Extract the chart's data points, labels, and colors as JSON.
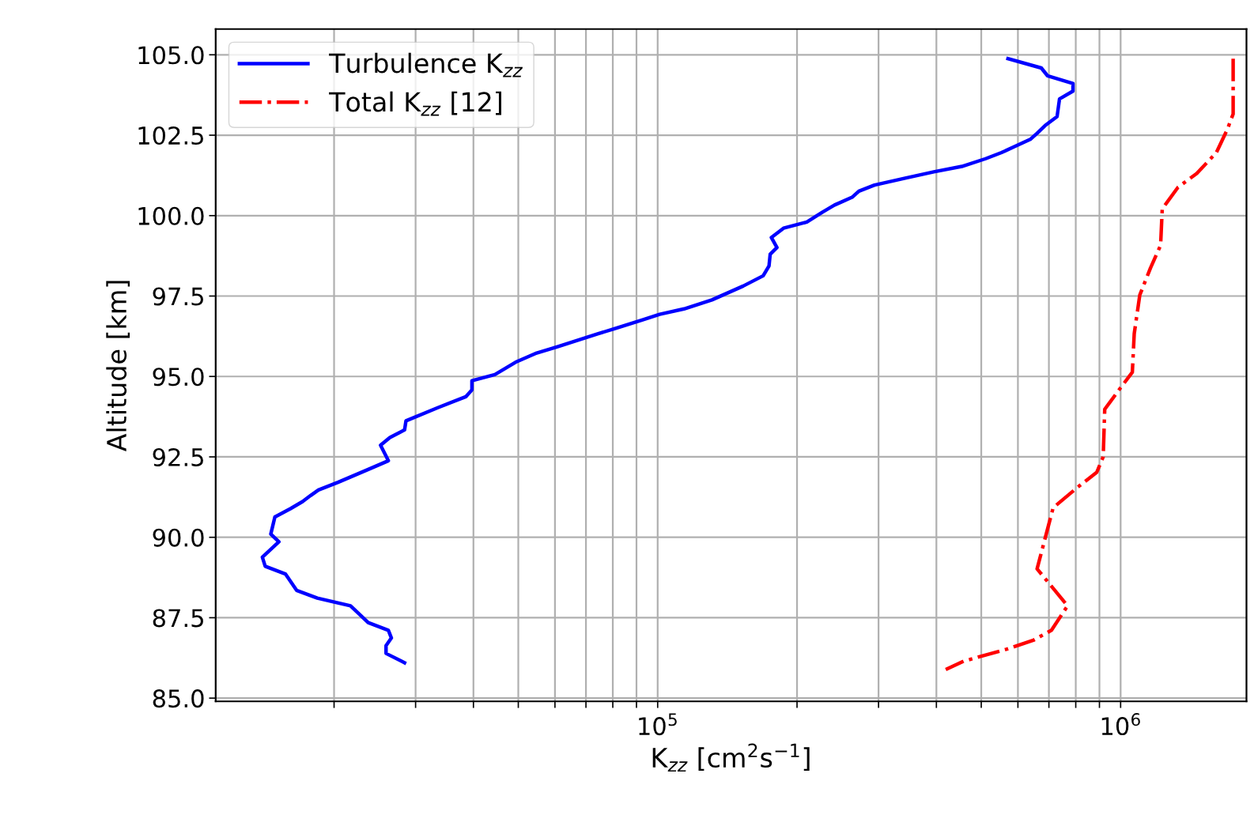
{
  "chart_data": {
    "type": "line",
    "xlabel": "K$_{zz}$ [cm$^{2}$s$^{−1}$]",
    "ylabel": "Altitude [km]",
    "log": "x",
    "grid": true,
    "legend": "top left",
    "xlim": [
      11100,
      1870000
    ],
    "xticks": [
      {
        "value": 20000,
        "label": null
      },
      {
        "value": 30000,
        "label": null
      },
      {
        "value": 40000,
        "label": null
      },
      {
        "value": 50000,
        "label": null
      },
      {
        "value": 60000,
        "label": null
      },
      {
        "value": 70000,
        "label": null
      },
      {
        "value": 80000,
        "label": null
      },
      {
        "value": 90000,
        "label": null
      },
      {
        "value": 100000,
        "label": "10$^{5}$"
      },
      {
        "value": 200000,
        "label": null
      },
      {
        "value": 300000,
        "label": null
      },
      {
        "value": 400000,
        "label": null
      },
      {
        "value": 500000,
        "label": null
      },
      {
        "value": 600000,
        "label": null
      },
      {
        "value": 700000,
        "label": null
      },
      {
        "value": 800000,
        "label": null
      },
      {
        "value": 900000,
        "label": null
      },
      {
        "value": 1000000,
        "label": "10$^{6}$"
      }
    ],
    "ylim": [
      84.9,
      105.8
    ],
    "yticks": [
      {
        "value": 85,
        "label": "85.0"
      },
      {
        "value": 87.5,
        "label": "87.5"
      },
      {
        "value": 90,
        "label": "90.0"
      },
      {
        "value": 92.5,
        "label": "92.5"
      },
      {
        "value": 95,
        "label": "95.0"
      },
      {
        "value": 97.5,
        "label": "97.5"
      },
      {
        "value": 100,
        "label": "100.0"
      },
      {
        "value": 102.5,
        "label": "102.5"
      },
      {
        "value": 105,
        "label": "105.0"
      }
    ],
    "series": [
      {
        "name": "Turbulence K$_{zz}$",
        "color": "#0000ff",
        "line_style": "solid",
        "x": [
          571000,
          674000,
          695000,
          789000,
          789000,
          738000,
          729000,
          687000,
          660000,
          638000,
          587000,
          553000,
          511000,
          454000,
          395000,
          344000,
          294000,
          272000,
          263000,
          241000,
          227000,
          210000,
          187000,
          176000,
          181000,
          175000,
          174000,
          169000,
          153000,
          131000,
          114000,
          101000,
          92800,
          81400,
          74400,
          60600,
          54800,
          49300,
          44500,
          39700,
          39700,
          38500,
          33500,
          28600,
          28400,
          26400,
          25200,
          26200,
          23700,
          20400,
          18500,
          17800,
          17100,
          16100,
          14900,
          14600,
          15200,
          14000,
          14200,
          15700,
          16600,
          18400,
          21700,
          22600,
          23700,
          26200,
          26600,
          25900,
          25900,
          28400
        ],
        "values": [
          104.88,
          104.59,
          104.35,
          104.11,
          103.87,
          103.63,
          103.08,
          102.8,
          102.56,
          102.37,
          102.13,
          101.96,
          101.77,
          101.53,
          101.36,
          101.17,
          100.95,
          100.76,
          100.57,
          100.33,
          100.11,
          99.8,
          99.61,
          99.32,
          99.01,
          98.8,
          98.44,
          98.13,
          97.81,
          97.38,
          97.1,
          96.93,
          96.76,
          96.5,
          96.33,
          95.92,
          95.73,
          95.44,
          95.06,
          94.87,
          94.58,
          94.37,
          94.03,
          93.62,
          93.34,
          93.1,
          92.86,
          92.38,
          92.11,
          91.71,
          91.47,
          91.3,
          91.11,
          90.89,
          90.63,
          90.1,
          89.86,
          89.38,
          89.1,
          88.86,
          88.35,
          88.11,
          87.87,
          87.63,
          87.35,
          87.11,
          86.87,
          86.63,
          86.39,
          86.1
        ]
      },
      {
        "name": "Total K$_{zz}$ [12]",
        "color": "#ff0000",
        "line_style": "dashdot",
        "x": [
          1750000,
          1750000,
          1700000,
          1610000,
          1460000,
          1330000,
          1230000,
          1220000,
          1160000,
          1100000,
          1070000,
          1060000,
          1000000,
          924000,
          917000,
          888000,
          805000,
          715000,
          660000,
          768000,
          709000,
          648000,
          564000,
          458000,
          419000
        ],
        "values": [
          104.88,
          103.16,
          102.68,
          101.96,
          101.31,
          100.88,
          100.21,
          99.08,
          98.37,
          97.53,
          96.33,
          95.13,
          94.65,
          93.98,
          92.5,
          92.02,
          91.54,
          90.92,
          89.02,
          87.87,
          87.11,
          86.8,
          86.51,
          86.15,
          85.89
        ]
      }
    ]
  }
}
